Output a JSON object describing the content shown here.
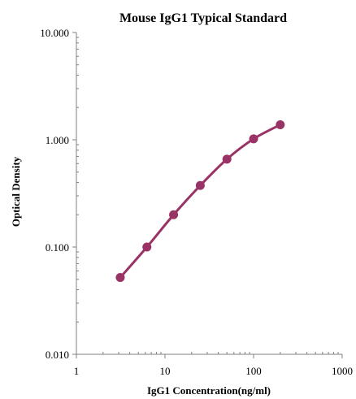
{
  "chart_data": {
    "type": "scatter",
    "title": "Mouse IgG1 Typical Standard",
    "xlabel": "IgG1 Concentration(ng/ml)",
    "ylabel": "Optical Density",
    "x_scale": "log",
    "y_scale": "log",
    "xlim": [
      1,
      1000
    ],
    "ylim": [
      0.01,
      10
    ],
    "x_ticks": [
      1,
      10,
      100,
      1000
    ],
    "x_tick_labels": [
      "1",
      "10",
      "100",
      "1000"
    ],
    "y_ticks": [
      10,
      1,
      0.1,
      0.01
    ],
    "y_tick_labels": [
      "10.000",
      "1.000",
      "0.100",
      "0.010"
    ],
    "grid": false,
    "series_color": "#993366",
    "x": [
      3.125,
      6.25,
      12.5,
      25,
      50,
      100,
      200
    ],
    "y": [
      0.052,
      0.1,
      0.2,
      0.375,
      0.66,
      1.02,
      1.38
    ]
  }
}
